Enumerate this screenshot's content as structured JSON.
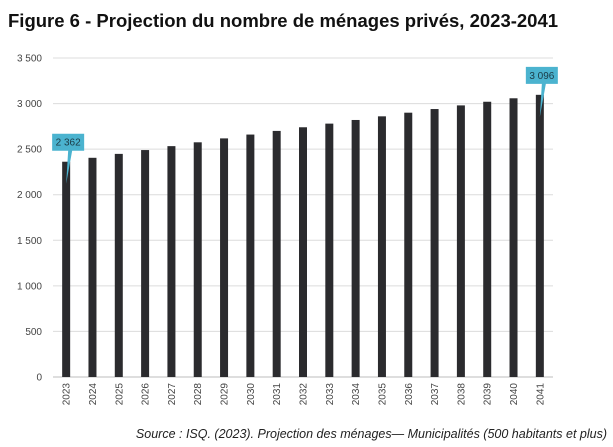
{
  "title": "Figure 6 - Projection du nombre de ménages privés, 2023-2041",
  "source": "Source : ISQ. (2023). Projection des ménages— Municipalités (500 habitants et plus)",
  "colors": {
    "bar": "#2b2b2e",
    "gridline": "#dcdcdc",
    "callout": "#4bb3cf"
  },
  "chart_data": {
    "type": "bar",
    "title": "Figure 6 - Projection du nombre de ménages privés, 2023-2041",
    "xlabel": "",
    "ylabel": "",
    "ylim": [
      0,
      3500
    ],
    "yticks": [
      0,
      500,
      1000,
      1500,
      2000,
      2500,
      3000,
      3500
    ],
    "ytick_labels": [
      "0",
      "500",
      "1 000",
      "1 500",
      "2 000",
      "2 500",
      "3 000",
      "3 500"
    ],
    "grid": true,
    "categories": [
      "2023",
      "2024",
      "2025",
      "2026",
      "2027",
      "2028",
      "2029",
      "2030",
      "2031",
      "2032",
      "2033",
      "2034",
      "2035",
      "2036",
      "2037",
      "2038",
      "2039",
      "2040",
      "2041"
    ],
    "values": [
      2362,
      2405,
      2448,
      2490,
      2533,
      2575,
      2618,
      2660,
      2700,
      2740,
      2780,
      2820,
      2860,
      2900,
      2940,
      2980,
      3020,
      3058,
      3096
    ],
    "annotations": [
      {
        "category": "2023",
        "label": "2 362"
      },
      {
        "category": "2041",
        "label": "3 096"
      }
    ]
  }
}
